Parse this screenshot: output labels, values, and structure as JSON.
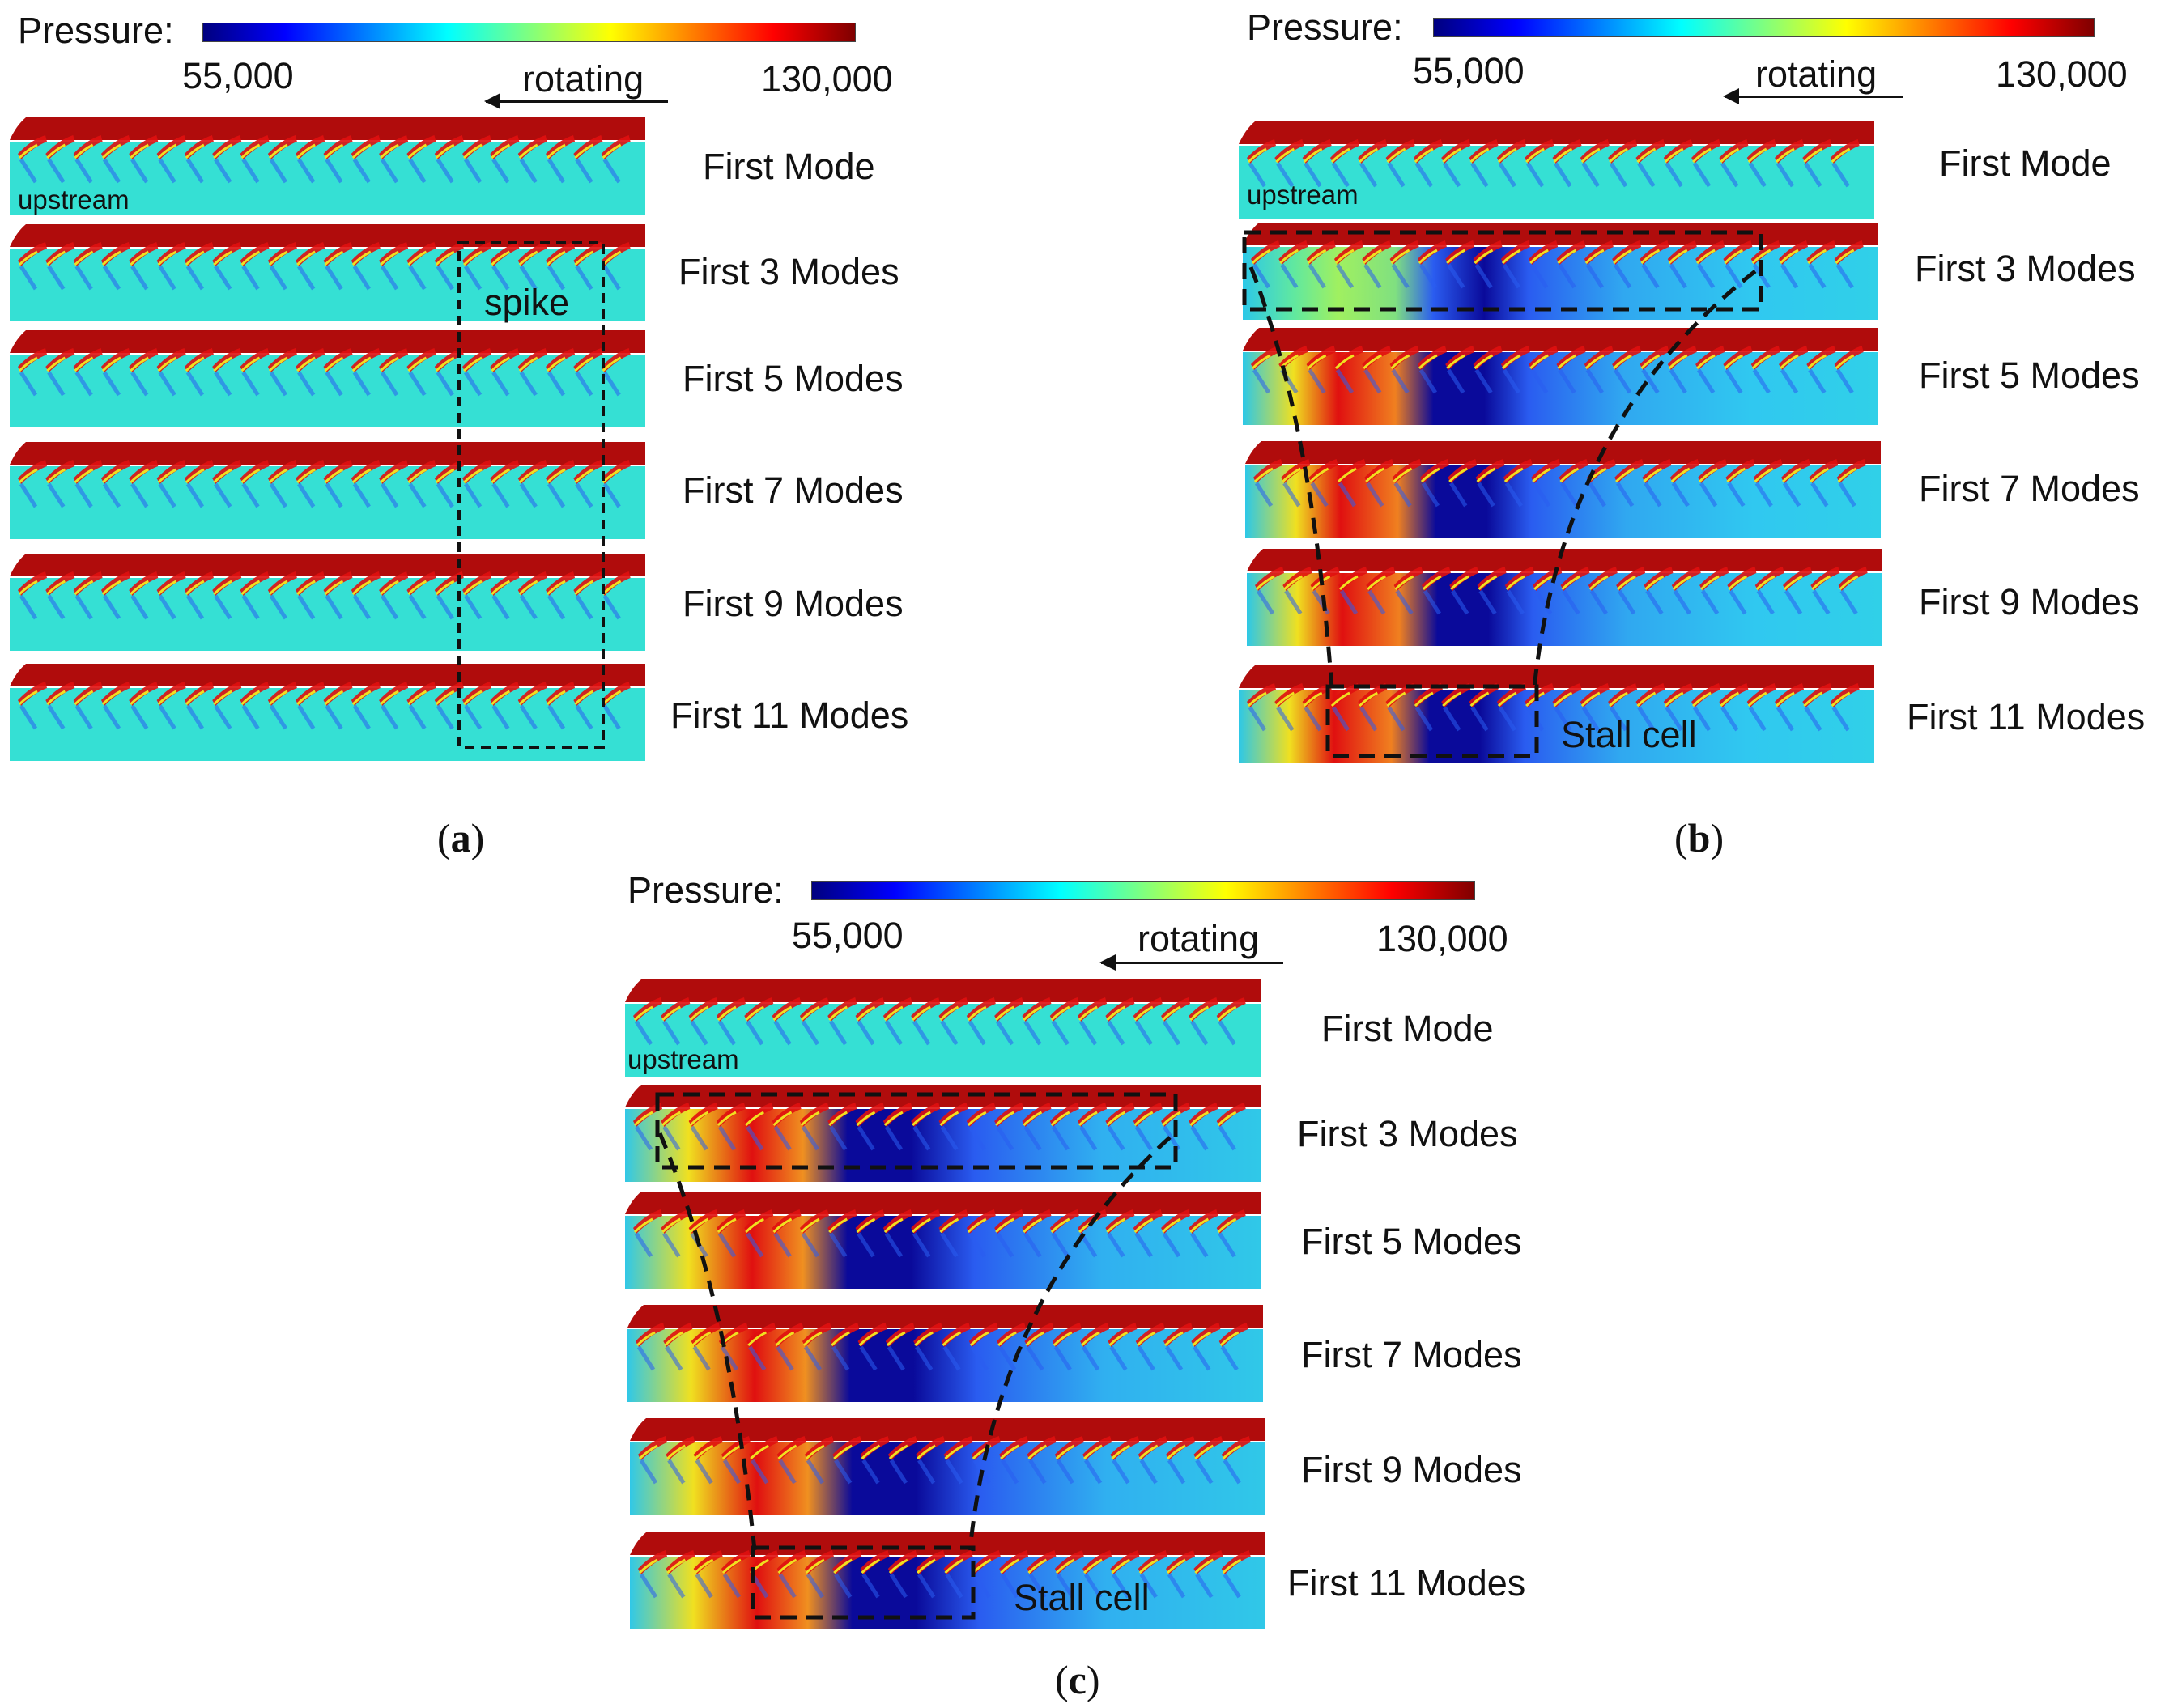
{
  "colorbar": {
    "label": "Pressure:",
    "min": "55,000",
    "max": "130,000"
  },
  "rotating_label": "rotating",
  "upstream_label": "upstream",
  "panels": [
    {
      "id": "a",
      "caption_letter": "a",
      "note": "spike",
      "rows": [
        "First Mode",
        "First 3 Modes",
        "First 5 Modes",
        "First 7 Modes",
        "First 9 Modes",
        "First 11 Modes"
      ]
    },
    {
      "id": "b",
      "caption_letter": "b",
      "note": "Stall cell",
      "rows": [
        "First Mode",
        "First 3 Modes",
        "First 5 Modes",
        "First 7 Modes",
        "First 9 Modes",
        "First 11 Modes"
      ]
    },
    {
      "id": "c",
      "caption_letter": "c",
      "note": "Stall cell",
      "rows": [
        "First Mode",
        "First 3 Modes",
        "First 5 Modes",
        "First 7 Modes",
        "First 9 Modes",
        "First 11 Modes"
      ]
    }
  ],
  "colors": {
    "background_field": "#35e0d4",
    "top_wall": "#b00c0c",
    "dark_blue": "#0a0a9a",
    "blue": "#2a5cf0",
    "yellow": "#f0e020",
    "red": "#e01010"
  }
}
